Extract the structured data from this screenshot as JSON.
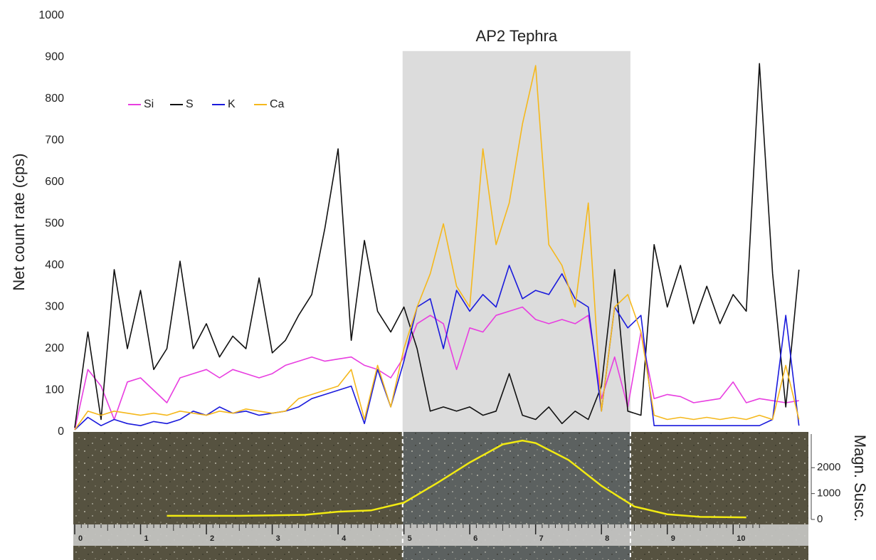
{
  "chart_data": [
    {
      "type": "line",
      "ylabel": "Net count rate (cps)",
      "xlim": [
        0,
        11.1
      ],
      "ylim": [
        0,
        1000
      ],
      "yticks": [
        0,
        100,
        200,
        300,
        400,
        500,
        600,
        700,
        800,
        900,
        1000
      ],
      "legend": "upper left",
      "annotations": [
        {
          "text": "AP2 Tephra",
          "xrange": [
            4.98,
            8.44
          ],
          "yrange": [
            0,
            915
          ],
          "color": "#dcdcdc"
        }
      ],
      "x": [
        0,
        0.2,
        0.4,
        0.6,
        0.8,
        1,
        1.2,
        1.4,
        1.6,
        1.8,
        2,
        2.2,
        2.4,
        2.6,
        2.8,
        3,
        3.2,
        3.4,
        3.6,
        3.8,
        4,
        4.2,
        4.4,
        4.6,
        4.8,
        5,
        5.2,
        5.4,
        5.6,
        5.8,
        6,
        6.2,
        6.4,
        6.6,
        6.8,
        7,
        7.2,
        7.4,
        7.6,
        7.8,
        8,
        8.2,
        8.4,
        8.6,
        8.8,
        9,
        9.2,
        9.4,
        9.6,
        9.8,
        10,
        10.2,
        10.4,
        10.6,
        10.8,
        11
      ],
      "series": [
        {
          "name": "Si",
          "color": "#e83ee0",
          "values": [
            5,
            150,
            110,
            30,
            120,
            130,
            100,
            70,
            130,
            140,
            150,
            130,
            150,
            140,
            130,
            140,
            160,
            170,
            180,
            170,
            175,
            180,
            160,
            150,
            130,
            180,
            260,
            280,
            260,
            150,
            250,
            240,
            280,
            290,
            300,
            270,
            260,
            270,
            260,
            280,
            80,
            180,
            60,
            240,
            80,
            90,
            85,
            70,
            75,
            80,
            120,
            70,
            80,
            75,
            70,
            75
          ]
        },
        {
          "name": "S",
          "color": "#111111",
          "values": [
            10,
            240,
            30,
            390,
            200,
            340,
            150,
            200,
            410,
            200,
            260,
            180,
            230,
            200,
            370,
            190,
            220,
            280,
            330,
            490,
            680,
            220,
            460,
            290,
            240,
            300,
            200,
            50,
            60,
            50,
            60,
            40,
            50,
            140,
            40,
            30,
            60,
            20,
            50,
            30,
            110,
            390,
            50,
            40,
            450,
            300,
            400,
            260,
            350,
            260,
            330,
            290,
            885,
            380,
            60,
            390
          ]
        },
        {
          "name": "K",
          "color": "#1a1adc",
          "values": [
            5,
            35,
            15,
            30,
            20,
            15,
            25,
            20,
            30,
            50,
            40,
            60,
            45,
            50,
            40,
            45,
            50,
            60,
            80,
            90,
            100,
            110,
            20,
            150,
            60,
            170,
            300,
            320,
            200,
            340,
            290,
            330,
            300,
            400,
            320,
            340,
            330,
            380,
            320,
            300,
            50,
            300,
            250,
            280,
            15,
            15,
            15,
            15,
            15,
            15,
            15,
            15,
            15,
            30,
            280,
            15
          ]
        },
        {
          "name": "Ca",
          "color": "#f5b81c",
          "values": [
            5,
            50,
            40,
            50,
            45,
            40,
            45,
            40,
            50,
            45,
            40,
            50,
            45,
            55,
            50,
            45,
            50,
            80,
            90,
            100,
            110,
            150,
            30,
            160,
            60,
            200,
            300,
            380,
            500,
            350,
            300,
            680,
            450,
            550,
            740,
            880,
            450,
            400,
            300,
            550,
            50,
            300,
            330,
            240,
            40,
            30,
            35,
            30,
            35,
            30,
            35,
            30,
            40,
            30,
            160,
            30
          ]
        }
      ]
    },
    {
      "type": "line",
      "ylabel": "Magn. Susc.",
      "xlim": [
        0,
        11.1
      ],
      "xticks": [
        0,
        1,
        2,
        3,
        4,
        5,
        6,
        7,
        8,
        9,
        10
      ],
      "ylim": [
        0,
        3300
      ],
      "yticks": [
        0,
        1000,
        2000
      ],
      "color": "#f2ea12",
      "x": [
        1.4,
        2.5,
        3.5,
        4,
        4.5,
        5,
        5.5,
        6,
        6.5,
        6.8,
        7,
        7.5,
        8,
        8.5,
        9,
        9.5,
        10.2
      ],
      "values": [
        140,
        140,
        180,
        300,
        350,
        650,
        1400,
        2200,
        2900,
        3050,
        2950,
        2300,
        1300,
        500,
        200,
        100,
        80
      ]
    }
  ]
}
